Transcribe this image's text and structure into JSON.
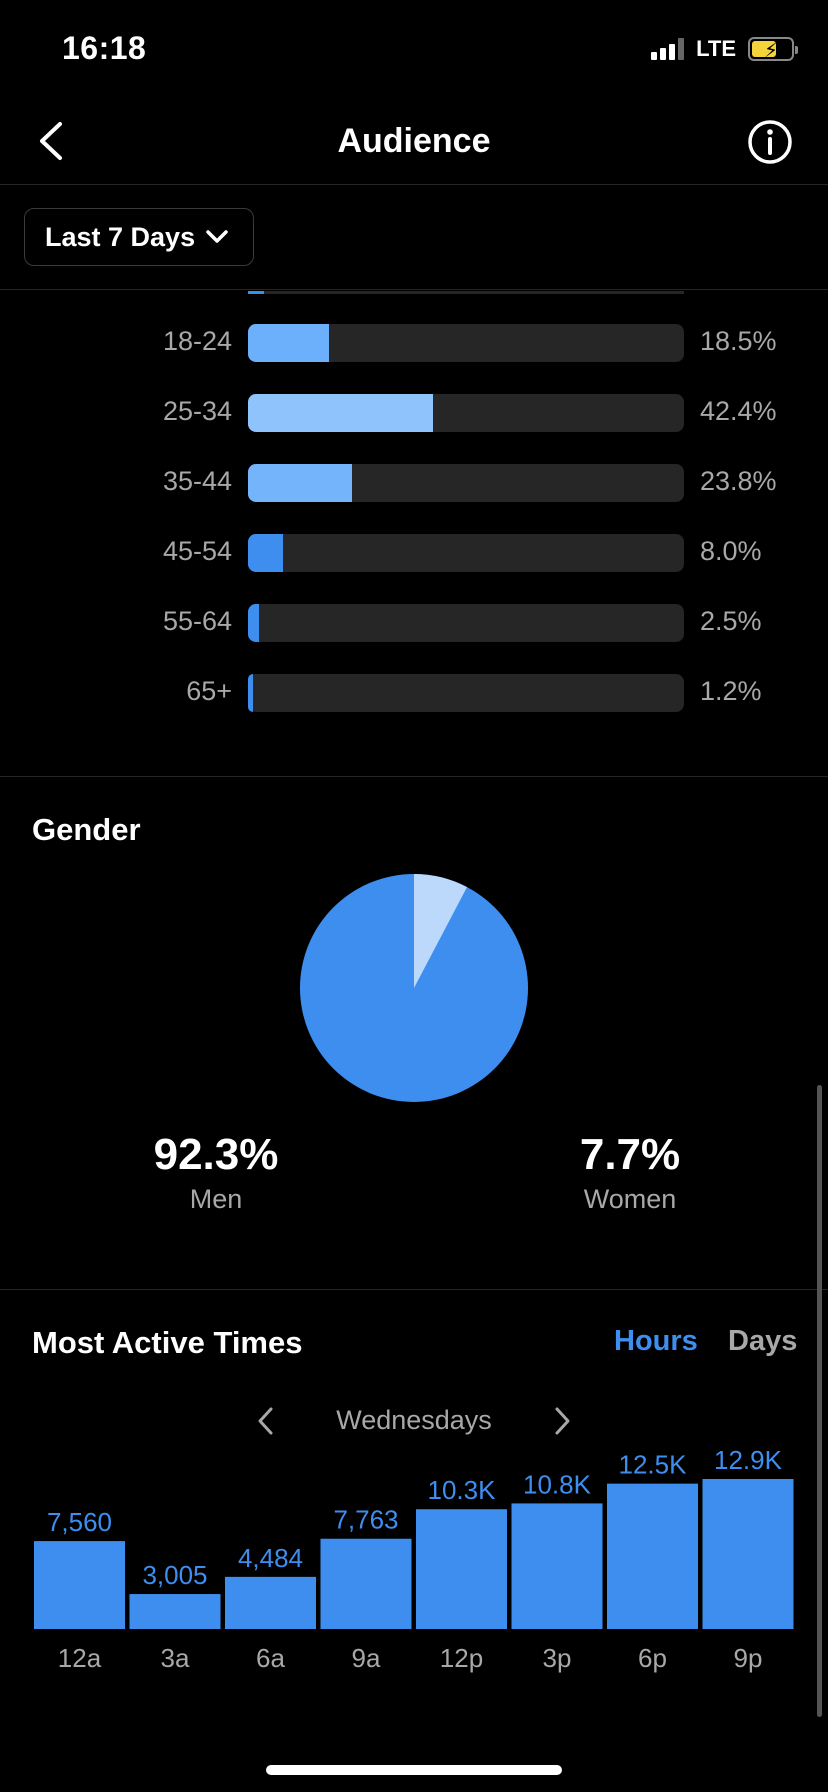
{
  "status_bar": {
    "time": "16:18",
    "network": "LTE"
  },
  "header": {
    "title": "Audience"
  },
  "filter": {
    "label": "Last 7 Days"
  },
  "age": {
    "rows": [
      {
        "label": "18-24",
        "pct": 18.5,
        "pct_label": "18.5%",
        "color": "#6cb0fb"
      },
      {
        "label": "25-34",
        "pct": 42.4,
        "pct_label": "42.4%",
        "color": "#8fc3fc"
      },
      {
        "label": "35-44",
        "pct": 23.8,
        "pct_label": "23.8%",
        "color": "#74b4fb"
      },
      {
        "label": "45-54",
        "pct": 8.0,
        "pct_label": "8.0%",
        "color": "#3e8ef0"
      },
      {
        "label": "55-64",
        "pct": 2.5,
        "pct_label": "2.5%",
        "color": "#3e8ef0"
      },
      {
        "label": "65+",
        "pct": 1.2,
        "pct_label": "1.2%",
        "color": "#3e8ef0"
      }
    ]
  },
  "gender": {
    "title": "Gender",
    "men_value": "92.3%",
    "men_label": "Men",
    "women_value": "7.7%",
    "women_label": "Women",
    "men_pct": 92.3,
    "women_pct": 7.7,
    "men_color": "#3e8ef0",
    "women_color": "#bcd9fc"
  },
  "active_times": {
    "title": "Most Active Times",
    "toggle_hours": "Hours",
    "toggle_days": "Days",
    "day": "Wednesdays",
    "accent": "#3e8ef0"
  },
  "chart_data": {
    "type": "bar",
    "categories": [
      "12a",
      "3a",
      "6a",
      "9a",
      "12p",
      "3p",
      "6p",
      "9p"
    ],
    "values": [
      7560,
      3005,
      4484,
      7763,
      10300,
      10800,
      12500,
      12900
    ],
    "value_labels": [
      "7,560",
      "3,005",
      "4,484",
      "7,763",
      "10.3K",
      "10.8K",
      "12.5K",
      "12.9K"
    ],
    "ylim": [
      0,
      12900
    ]
  }
}
